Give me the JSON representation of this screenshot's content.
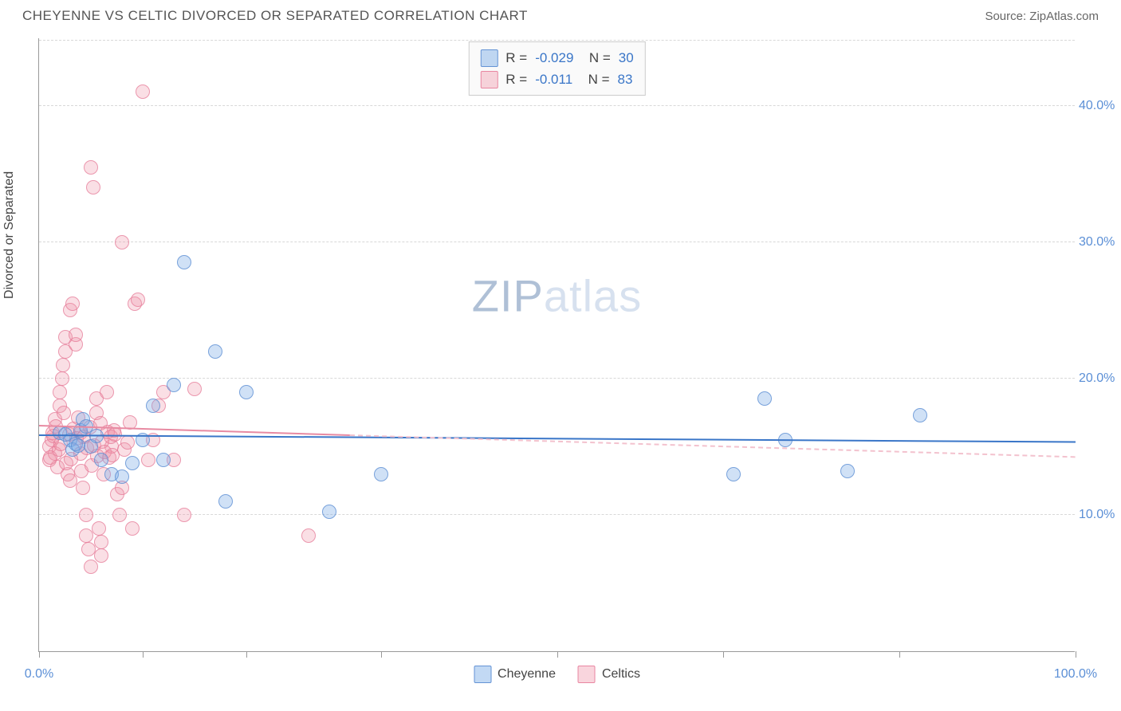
{
  "header": {
    "title": "CHEYENNE VS CELTIC DIVORCED OR SEPARATED CORRELATION CHART",
    "source": "Source: ZipAtlas.com"
  },
  "chart": {
    "type": "scatter",
    "ylabel": "Divorced or Separated",
    "xlim": [
      0,
      100
    ],
    "ylim": [
      0,
      45
    ],
    "ytick_values": [
      10,
      20,
      30,
      40
    ],
    "ytick_labels": [
      "10.0%",
      "20.0%",
      "30.0%",
      "40.0%"
    ],
    "xtick_values": [
      0,
      10,
      20,
      33,
      50,
      66,
      83,
      100
    ],
    "xtick_major_labels": {
      "0": "0.0%",
      "100": "100.0%"
    },
    "background_color": "#ffffff",
    "grid_color": "#d8d8d8",
    "series": [
      {
        "name": "Cheyenne",
        "color_fill": "rgba(120,170,230,0.35)",
        "color_stroke": "rgba(90,140,210,0.75)",
        "marker_size": 18,
        "R": "-0.029",
        "N": "30",
        "trend_solid": {
          "x0": 0,
          "y0": 15.8,
          "x1": 100,
          "y1": 15.3,
          "color": "#3a76c8"
        },
        "points": [
          [
            2,
            16
          ],
          [
            3,
            15.5
          ],
          [
            3.2,
            14.8
          ],
          [
            3.5,
            15.2
          ],
          [
            4,
            16.2
          ],
          [
            4.2,
            17
          ],
          [
            5,
            15
          ],
          [
            6,
            14
          ],
          [
            7,
            13
          ],
          [
            8,
            12.8
          ],
          [
            9,
            13.8
          ],
          [
            10,
            15.5
          ],
          [
            11,
            18
          ],
          [
            12,
            14
          ],
          [
            13,
            19.5
          ],
          [
            14,
            28.5
          ],
          [
            17,
            22
          ],
          [
            18,
            11
          ],
          [
            20,
            19
          ],
          [
            28,
            10.2
          ],
          [
            33,
            13
          ],
          [
            70,
            18.5
          ],
          [
            72,
            15.5
          ],
          [
            67,
            13
          ],
          [
            78,
            13.2
          ],
          [
            85,
            17.3
          ],
          [
            2.5,
            15.9
          ],
          [
            3.8,
            15.1
          ],
          [
            4.5,
            16.5
          ],
          [
            5.5,
            15.8
          ]
        ]
      },
      {
        "name": "Celtics",
        "color_fill": "rgba(240,150,170,0.30)",
        "color_stroke": "rgba(230,120,150,0.70)",
        "marker_size": 18,
        "R": "-0.011",
        "N": "83",
        "trend_solid": {
          "x0": 0,
          "y0": 16.5,
          "x1": 30,
          "y1": 15.8,
          "color": "#e88aa2"
        },
        "trend_dash": {
          "x0": 30,
          "y0": 15.8,
          "x1": 100,
          "y1": 14.2,
          "color": "#f3c2ce"
        },
        "points": [
          [
            1,
            14
          ],
          [
            1,
            15
          ],
          [
            1.2,
            15.5
          ],
          [
            1.3,
            16
          ],
          [
            1.5,
            14.5
          ],
          [
            1.5,
            17
          ],
          [
            1.8,
            13.5
          ],
          [
            2,
            18
          ],
          [
            2,
            19
          ],
          [
            2.2,
            20
          ],
          [
            2.3,
            21
          ],
          [
            2.5,
            22
          ],
          [
            2.5,
            23
          ],
          [
            2.8,
            13
          ],
          [
            3,
            12.5
          ],
          [
            3,
            25
          ],
          [
            3.2,
            25.5
          ],
          [
            3.5,
            22.5
          ],
          [
            3.5,
            23.2
          ],
          [
            4,
            16
          ],
          [
            4,
            14.5
          ],
          [
            4.2,
            12
          ],
          [
            4.5,
            10
          ],
          [
            4.5,
            8.5
          ],
          [
            4.8,
            7.5
          ],
          [
            5,
            6.2
          ],
          [
            5,
            35.5
          ],
          [
            5.2,
            34
          ],
          [
            5.5,
            17.5
          ],
          [
            5.5,
            18.5
          ],
          [
            5.8,
            9
          ],
          [
            6,
            7
          ],
          [
            6,
            8
          ],
          [
            6.2,
            13
          ],
          [
            6.5,
            19
          ],
          [
            6.8,
            14.2
          ],
          [
            7,
            15
          ],
          [
            7.2,
            16.2
          ],
          [
            7.5,
            11.5
          ],
          [
            7.8,
            10
          ],
          [
            8,
            12
          ],
          [
            8,
            30
          ],
          [
            8.2,
            14.8
          ],
          [
            8.5,
            15.3
          ],
          [
            8.8,
            16.8
          ],
          [
            9,
            9
          ],
          [
            9.2,
            25.5
          ],
          [
            9.5,
            25.8
          ],
          [
            10,
            41
          ],
          [
            10.5,
            14
          ],
          [
            11,
            15.5
          ],
          [
            11.5,
            18
          ],
          [
            12,
            19
          ],
          [
            13,
            14
          ],
          [
            14,
            10
          ],
          [
            15,
            19.2
          ],
          [
            26,
            8.5
          ],
          [
            1.1,
            14.2
          ],
          [
            1.4,
            15.8
          ],
          [
            1.6,
            16.5
          ],
          [
            1.9,
            14.8
          ],
          [
            2.1,
            15.2
          ],
          [
            2.4,
            17.5
          ],
          [
            2.6,
            13.8
          ],
          [
            2.9,
            15.9
          ],
          [
            3.1,
            14.1
          ],
          [
            3.3,
            16.3
          ],
          [
            3.6,
            15.6
          ],
          [
            3.8,
            17.1
          ],
          [
            4.1,
            13.2
          ],
          [
            4.3,
            15.7
          ],
          [
            4.6,
            14.9
          ],
          [
            4.9,
            16.4
          ],
          [
            5.1,
            13.6
          ],
          [
            5.3,
            15.1
          ],
          [
            5.6,
            14.3
          ],
          [
            5.9,
            16.7
          ],
          [
            6.1,
            15.4
          ],
          [
            6.3,
            14.6
          ],
          [
            6.6,
            16.1
          ],
          [
            6.9,
            15.7
          ],
          [
            7.1,
            14.4
          ],
          [
            7.3,
            15.9
          ]
        ]
      }
    ],
    "watermark": {
      "zip": "ZIP",
      "atlas": "atlas"
    }
  },
  "bottom_legend": [
    {
      "label": "Cheyenne",
      "swatch": "s1"
    },
    {
      "label": "Celtics",
      "swatch": "s2"
    }
  ]
}
